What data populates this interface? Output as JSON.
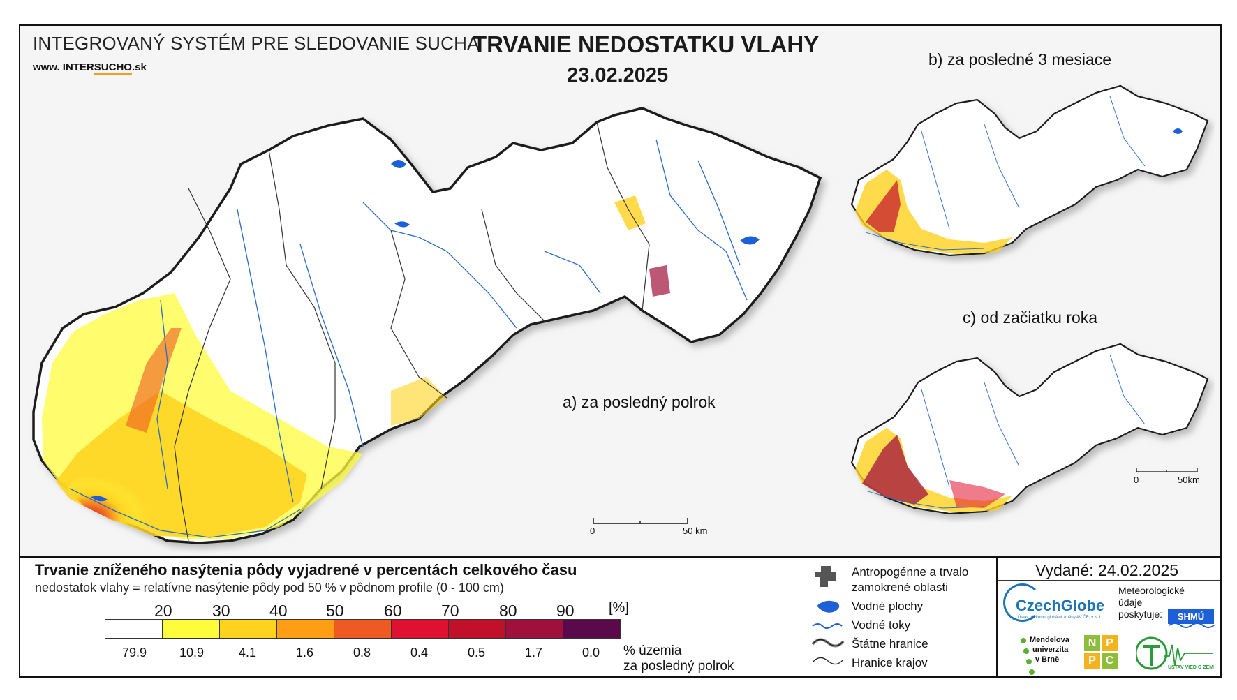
{
  "header": {
    "system_title": "INTEGROVANÝ SYSTÉM PRE SLEDOVANIE SUCHA",
    "website_prefix": "www.",
    "website_a": "INTER",
    "website_b": "SUCHO",
    "website_c": ".sk",
    "map_title": "TRVANIE NEDOSTATKU VLAHY",
    "map_date": "23.02.2025"
  },
  "panels": {
    "a_label": "a) za posledný polrok",
    "b_label": "b) za posledné 3 mesiace",
    "c_label": "c) od začiatku roka",
    "scale_zero": "0",
    "scale_main": "50 km",
    "scale_small": "50km"
  },
  "legend": {
    "title": "Trvanie zníženého nasýtenia pôdy vyjadrené v percentách celkového času",
    "subtitle": "nedostatok vlahy = relatívne nasýtenie pôdy pod 50 % v pôdnom profile (0 - 100 cm)",
    "thresholds": [
      "20",
      "30",
      "40",
      "50",
      "60",
      "70",
      "80",
      "90"
    ],
    "unit": "[%]",
    "colors": [
      "#ffffff",
      "#fffc3c",
      "#ffd21e",
      "#ff9e14",
      "#ef5a22",
      "#e01030",
      "#c0102a",
      "#a0103c",
      "#5a0a4a"
    ],
    "area_values": [
      "79.9",
      "10.9",
      "4.1",
      "1.6",
      "0.8",
      "0.4",
      "0.5",
      "1.7",
      "0.0"
    ],
    "area_label_1": "% územia",
    "area_label_2": "za posledný polrok"
  },
  "symbols": {
    "anthropogenic_1": "Antropogénne a trvalo",
    "anthropogenic_2": "zamokrené oblasti",
    "water_bodies": "Vodné plochy",
    "rivers": "Vodné toky",
    "state_border": "Štátne hranice",
    "regional_border": "Hranice krajov"
  },
  "credits": {
    "issued": "Vydané: 24.02.2025",
    "czechglobe": "CzechGlobe",
    "czechglobe_sub": "Ústav výzkumu globální změny AV ČR, v. v. i.",
    "meteo_1": "Meteorologické",
    "meteo_2": "údaje",
    "meteo_3": "poskytuje:",
    "shmu": "SHMÚ",
    "mendel_1": "Mendelova",
    "mendel_2": "univerzita",
    "mendel_3": "v Brně",
    "npc": [
      "N",
      "P",
      "P",
      "C"
    ],
    "uvz": "ÚSTAV VIED O ZEMI"
  }
}
